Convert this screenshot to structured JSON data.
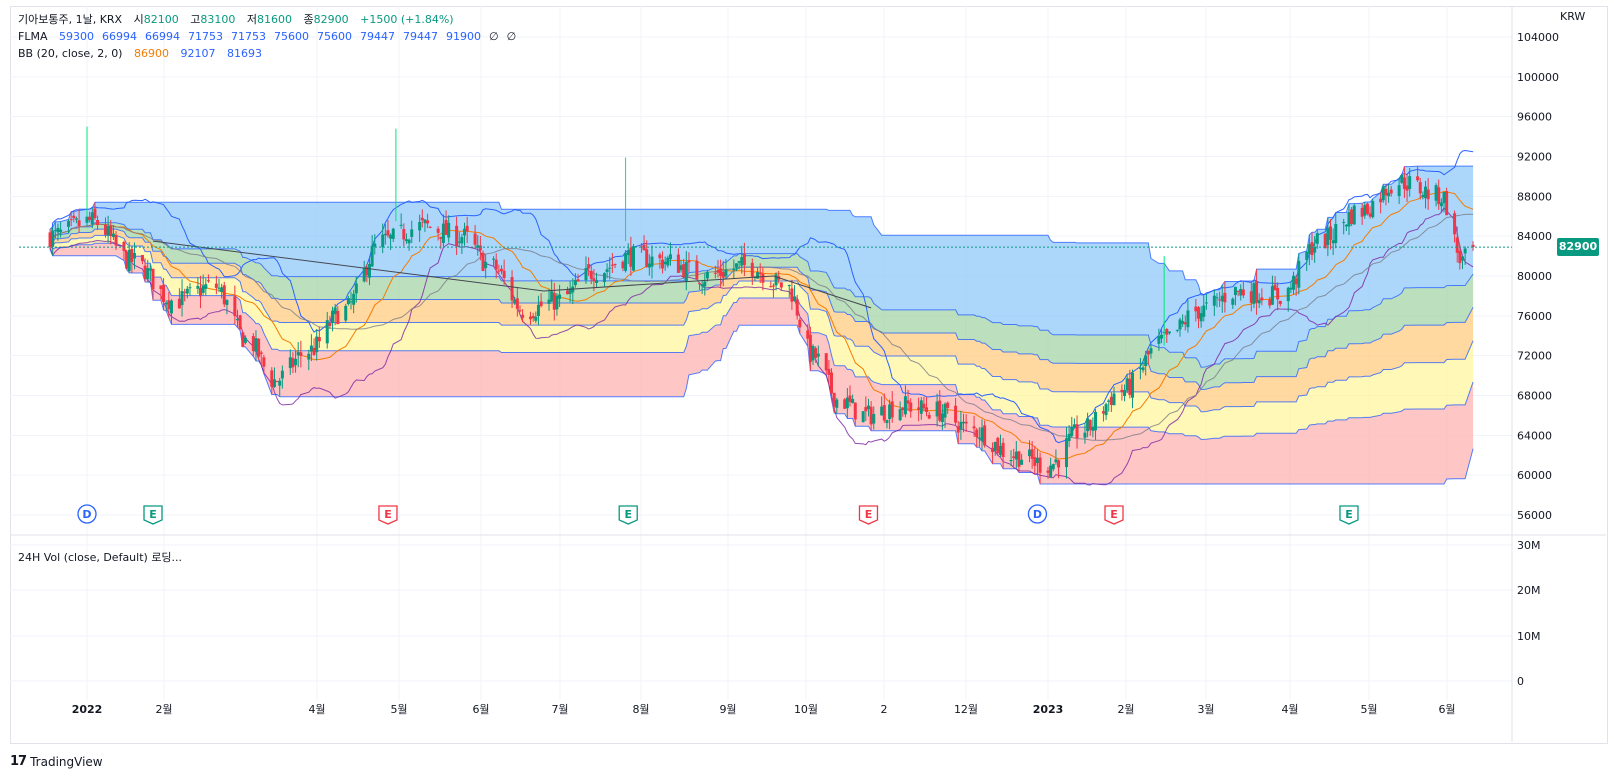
{
  "header": {
    "symbol_line": [
      "기아보통주, 1날, KRX",
      "시",
      "82100",
      "고",
      "83100",
      "저",
      "81600",
      "종",
      "82900",
      "+1500 (+1.84%)"
    ],
    "flma_label": "FLMA",
    "flma_values": [
      "59300",
      "66994",
      "66994",
      "71753",
      "71753",
      "75600",
      "75600",
      "79447",
      "79447",
      "91900",
      "∅",
      "∅"
    ],
    "bb_label": "BB (20, close, 2, 0)",
    "bb_values": [
      "86900",
      "92107",
      "81693"
    ]
  },
  "volume_pane": {
    "label": "24H Vol (close, Default) 로딩...",
    "ticks": [
      "30M",
      "20M",
      "10M",
      "0"
    ]
  },
  "currency": "KRW",
  "last_price": "82900",
  "branding": {
    "logo_mark": "17",
    "name": "TradingView"
  },
  "colors": {
    "up": "#089981",
    "down": "#f23645",
    "bb_line": "#2962ff",
    "zone_blue": "#90caf9",
    "zone_green": "#a5d6a7",
    "zone_orange": "#ffcc80",
    "zone_yellow": "#fff59d",
    "zone_red": "#ffb3b3",
    "ma_orange": "#f57c00"
  },
  "chart_data": [
    {
      "type": "line",
      "subtype": "candlestick",
      "title": "",
      "xlabel": "",
      "ylabel": "",
      "ylim": [
        55000,
        105000
      ],
      "y_ticks": [
        104000,
        100000,
        96000,
        92000,
        88000,
        84000,
        80000,
        76000,
        72000,
        68000,
        64000,
        60000,
        56000
      ],
      "x_ticks": [
        "2022",
        "2월",
        "4월",
        "5월",
        "6월",
        "7월",
        "8월",
        "9월",
        "10월",
        "2",
        "12월",
        "2023",
        "2월",
        "3월",
        "4월",
        "5월",
        "6월"
      ],
      "grid": true,
      "price_path": [
        [
          "2021-12-20",
          84000
        ],
        [
          "2022-01-05",
          85500
        ],
        [
          "2022-01-20",
          81500
        ],
        [
          "2022-02-05",
          77500
        ],
        [
          "2022-02-20",
          79000
        ],
        [
          "2022-03-05",
          73500
        ],
        [
          "2022-03-15",
          69500
        ],
        [
          "2022-03-28",
          72500
        ],
        [
          "2022-04-10",
          76500
        ],
        [
          "2022-04-25",
          83500
        ],
        [
          "2022-05-10",
          85000
        ],
        [
          "2022-05-25",
          84000
        ],
        [
          "2022-06-05",
          81000
        ],
        [
          "2022-06-18",
          76500
        ],
        [
          "2022-06-30",
          77500
        ],
        [
          "2022-07-15",
          80500
        ],
        [
          "2022-07-28",
          82000
        ],
        [
          "2022-08-10",
          81500
        ],
        [
          "2022-08-25",
          80000
        ],
        [
          "2022-09-10",
          81000
        ],
        [
          "2022-09-25",
          79000
        ],
        [
          "2022-10-05",
          72000
        ],
        [
          "2022-10-15",
          67500
        ],
        [
          "2022-10-25",
          66000
        ],
        [
          "2022-11-08",
          67000
        ],
        [
          "2022-11-20",
          66500
        ],
        [
          "2022-12-05",
          64500
        ],
        [
          "2022-12-20",
          62000
        ],
        [
          "2023-01-02",
          61000
        ],
        [
          "2023-01-15",
          64500
        ],
        [
          "2023-01-30",
          68500
        ],
        [
          "2023-02-15",
          73500
        ],
        [
          "2023-02-28",
          76500
        ],
        [
          "2023-03-15",
          78500
        ],
        [
          "2023-03-31",
          78000
        ],
        [
          "2023-04-15",
          83500
        ],
        [
          "2023-04-30",
          86500
        ],
        [
          "2023-05-15",
          89500
        ],
        [
          "2023-05-31",
          88000
        ],
        [
          "2023-06-08",
          81500
        ],
        [
          "2023-06-12",
          82900
        ]
      ],
      "bollinger_bands": {
        "period": 20,
        "source": "close",
        "stdev": 2,
        "offset": 0,
        "basis": 86900,
        "upper": 92107,
        "lower": 81693
      },
      "flma_levels": [
        59300,
        66994,
        66994,
        71753,
        71753,
        75600,
        75600,
        79447,
        79447,
        91900
      ],
      "flma_zones": [
        "red",
        "yellow",
        "orange",
        "green",
        "blue"
      ],
      "event_markers": [
        {
          "label": "D",
          "date": "2022-01-03"
        },
        {
          "label": "E",
          "date": "2022-01-28"
        },
        {
          "label": "E",
          "date": "2022-04-27"
        },
        {
          "label": "E",
          "date": "2022-07-27"
        },
        {
          "label": "E",
          "date": "2022-10-26"
        },
        {
          "label": "D",
          "date": "2022-12-29"
        },
        {
          "label": "E",
          "date": "2023-01-27"
        },
        {
          "label": "E",
          "date": "2023-04-26"
        }
      ],
      "last_price": 82900
    },
    {
      "type": "bar",
      "title": "24H Vol (close, Default) 로딩...",
      "ylim": [
        0,
        33000000
      ],
      "y_ticks": [
        "30M",
        "20M",
        "10M",
        "0"
      ],
      "values": []
    }
  ]
}
